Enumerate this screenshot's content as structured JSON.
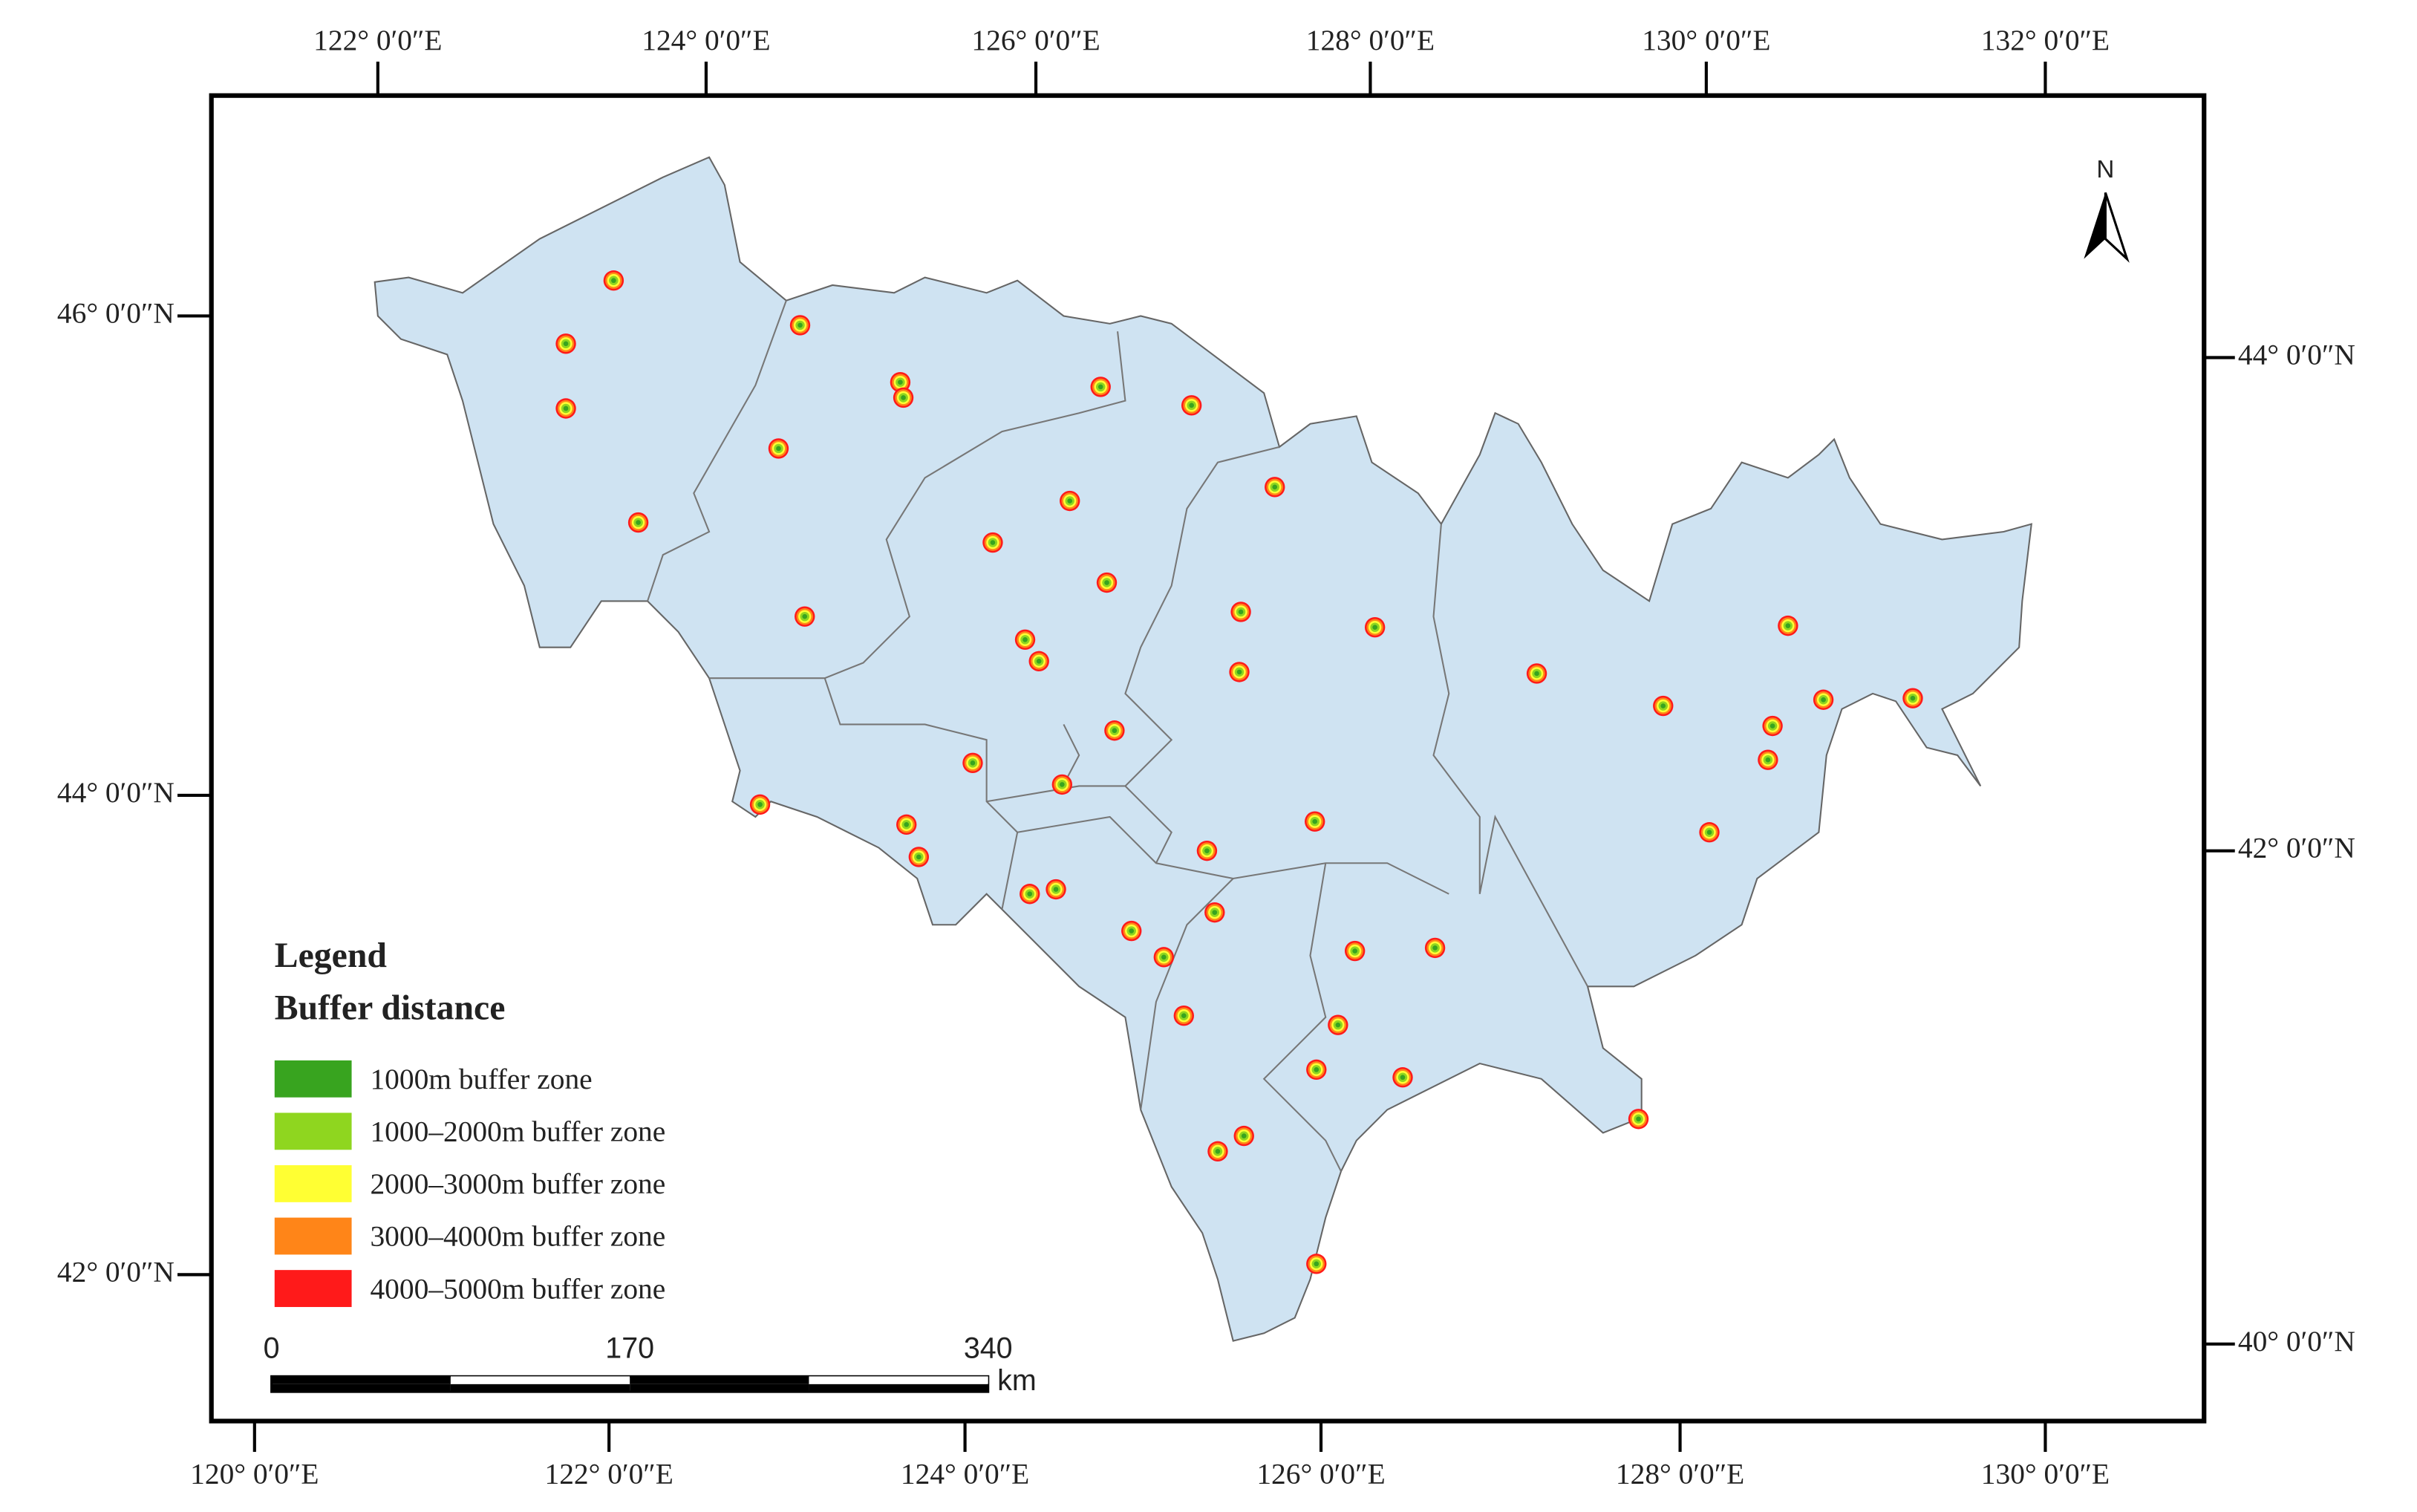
{
  "axes": {
    "top": [
      "122° 0′0″E",
      "124° 0′0″E",
      "126° 0′0″E",
      "128° 0′0″E",
      "130° 0′0″E",
      "132° 0′0″E"
    ],
    "bottom": [
      "120° 0′0″E",
      "122° 0′0″E",
      "124° 0′0″E",
      "126° 0′0″E",
      "128° 0′0″E",
      "130° 0′0″E"
    ],
    "left": [
      "46° 0′0″N",
      "44° 0′0″N",
      "42° 0′0″N"
    ],
    "right": [
      "44° 0′0″N",
      "42° 0′0″N",
      "40° 0′0″N"
    ]
  },
  "north": "N",
  "legend": {
    "title": "Legend",
    "subtitle": "Buffer distance",
    "items": [
      {
        "label": "1000m buffer zone",
        "color": "#38a41f"
      },
      {
        "label": "1000–2000m buffer zone",
        "color": "#8fd61f"
      },
      {
        "label": "2000–3000m buffer zone",
        "color": "#ffff33"
      },
      {
        "label": "3000–4000m buffer zone",
        "color": "#ff8518"
      },
      {
        "label": "4000–5000m buffer zone",
        "color": "#ff1a1a"
      }
    ]
  },
  "scale_bar": {
    "ticks": [
      0,
      170,
      340
    ],
    "unit": "km"
  }
}
